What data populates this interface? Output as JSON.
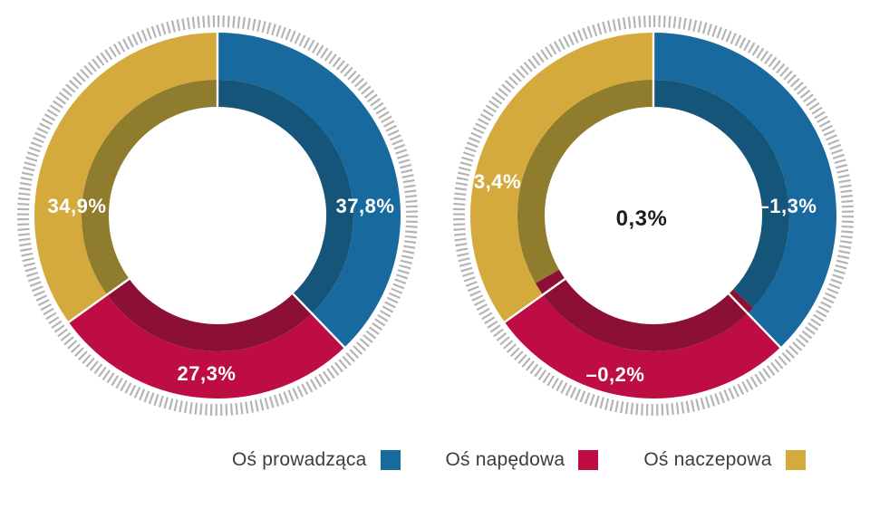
{
  "chart_data": [
    {
      "type": "donut",
      "categories": [
        "Oś prowadząca",
        "Oś napędowa",
        "Oś naczepowa"
      ],
      "colors": [
        "#17699e",
        "#bd0d43",
        "#d4aa3c"
      ],
      "dark_colors": [
        "#145579",
        "#8c1036",
        "#8f7c2c"
      ],
      "outer_shares": [
        37.8,
        27.3,
        34.9
      ],
      "inner_shares": [
        37.8,
        27.3,
        34.9
      ],
      "labels": [
        "37,8%",
        "27,3%",
        "34,9%"
      ],
      "center_label": "",
      "start_angle_deg": 0,
      "legend_position": "bottom",
      "tick_ring_color": "#b4b4b4"
    },
    {
      "type": "donut",
      "categories": [
        "Oś prowadząca",
        "Oś napędowa",
        "Oś naczepowa"
      ],
      "colors": [
        "#17699e",
        "#bd0d43",
        "#d4aa3c"
      ],
      "dark_colors": [
        "#145579",
        "#8c1036",
        "#8f7c2c"
      ],
      "outer_shares": [
        37.8,
        27.3,
        34.9
      ],
      "inner_shares": [
        36.9,
        29.8,
        33.3
      ],
      "labels": [
        "–1,3%",
        "–0,2%",
        "3,4%"
      ],
      "center_label": "0,3%",
      "start_angle_deg": 0,
      "legend_position": "bottom",
      "tick_ring_color": "#b4b4b4"
    }
  ],
  "legend": {
    "items": [
      {
        "label": "Oś prowadząca",
        "color": "#17699e"
      },
      {
        "label": "Oś napędowa",
        "color": "#bd0d43"
      },
      {
        "label": "Oś naczepowa",
        "color": "#d4aa3c"
      }
    ]
  }
}
